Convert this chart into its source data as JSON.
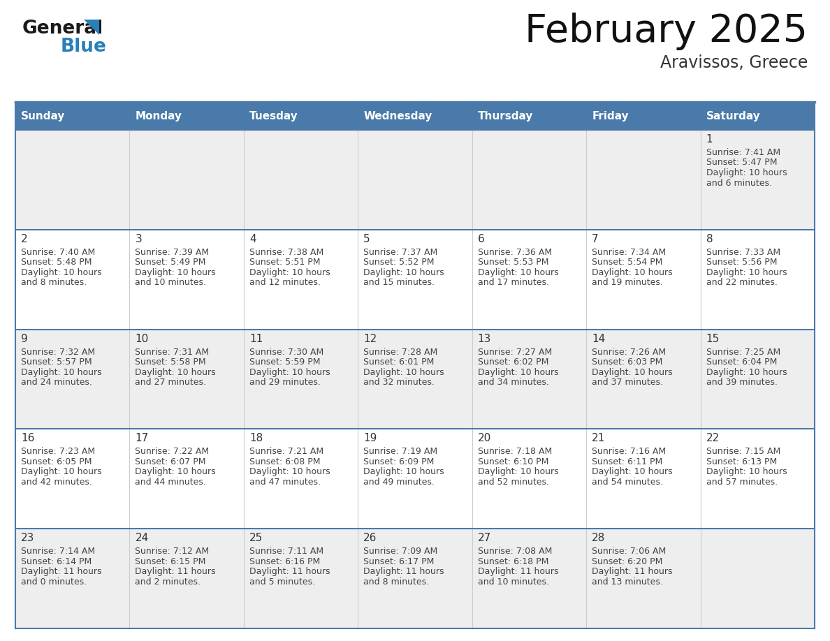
{
  "title": "February 2025",
  "subtitle": "Aravissos, Greece",
  "days_of_week": [
    "Sunday",
    "Monday",
    "Tuesday",
    "Wednesday",
    "Thursday",
    "Friday",
    "Saturday"
  ],
  "header_bg": "#4a7aaa",
  "header_text_color": "#ffffff",
  "row_bg_gray": "#eeeeee",
  "row_bg_white": "#ffffff",
  "border_color": "#4a7aaa",
  "day_number_color": "#333333",
  "cell_text_color": "#444444",
  "logo_black": "#1a1a1a",
  "logo_blue": "#2980b9",
  "calendar_data": [
    {
      "day": 1,
      "col": 6,
      "row": 0,
      "sunrise": "7:41 AM",
      "sunset": "5:47 PM",
      "daylight": "10 hours and 6 minutes."
    },
    {
      "day": 2,
      "col": 0,
      "row": 1,
      "sunrise": "7:40 AM",
      "sunset": "5:48 PM",
      "daylight": "10 hours and 8 minutes."
    },
    {
      "day": 3,
      "col": 1,
      "row": 1,
      "sunrise": "7:39 AM",
      "sunset": "5:49 PM",
      "daylight": "10 hours and 10 minutes."
    },
    {
      "day": 4,
      "col": 2,
      "row": 1,
      "sunrise": "7:38 AM",
      "sunset": "5:51 PM",
      "daylight": "10 hours and 12 minutes."
    },
    {
      "day": 5,
      "col": 3,
      "row": 1,
      "sunrise": "7:37 AM",
      "sunset": "5:52 PM",
      "daylight": "10 hours and 15 minutes."
    },
    {
      "day": 6,
      "col": 4,
      "row": 1,
      "sunrise": "7:36 AM",
      "sunset": "5:53 PM",
      "daylight": "10 hours and 17 minutes."
    },
    {
      "day": 7,
      "col": 5,
      "row": 1,
      "sunrise": "7:34 AM",
      "sunset": "5:54 PM",
      "daylight": "10 hours and 19 minutes."
    },
    {
      "day": 8,
      "col": 6,
      "row": 1,
      "sunrise": "7:33 AM",
      "sunset": "5:56 PM",
      "daylight": "10 hours and 22 minutes."
    },
    {
      "day": 9,
      "col": 0,
      "row": 2,
      "sunrise": "7:32 AM",
      "sunset": "5:57 PM",
      "daylight": "10 hours and 24 minutes."
    },
    {
      "day": 10,
      "col": 1,
      "row": 2,
      "sunrise": "7:31 AM",
      "sunset": "5:58 PM",
      "daylight": "10 hours and 27 minutes."
    },
    {
      "day": 11,
      "col": 2,
      "row": 2,
      "sunrise": "7:30 AM",
      "sunset": "5:59 PM",
      "daylight": "10 hours and 29 minutes."
    },
    {
      "day": 12,
      "col": 3,
      "row": 2,
      "sunrise": "7:28 AM",
      "sunset": "6:01 PM",
      "daylight": "10 hours and 32 minutes."
    },
    {
      "day": 13,
      "col": 4,
      "row": 2,
      "sunrise": "7:27 AM",
      "sunset": "6:02 PM",
      "daylight": "10 hours and 34 minutes."
    },
    {
      "day": 14,
      "col": 5,
      "row": 2,
      "sunrise": "7:26 AM",
      "sunset": "6:03 PM",
      "daylight": "10 hours and 37 minutes."
    },
    {
      "day": 15,
      "col": 6,
      "row": 2,
      "sunrise": "7:25 AM",
      "sunset": "6:04 PM",
      "daylight": "10 hours and 39 minutes."
    },
    {
      "day": 16,
      "col": 0,
      "row": 3,
      "sunrise": "7:23 AM",
      "sunset": "6:05 PM",
      "daylight": "10 hours and 42 minutes."
    },
    {
      "day": 17,
      "col": 1,
      "row": 3,
      "sunrise": "7:22 AM",
      "sunset": "6:07 PM",
      "daylight": "10 hours and 44 minutes."
    },
    {
      "day": 18,
      "col": 2,
      "row": 3,
      "sunrise": "7:21 AM",
      "sunset": "6:08 PM",
      "daylight": "10 hours and 47 minutes."
    },
    {
      "day": 19,
      "col": 3,
      "row": 3,
      "sunrise": "7:19 AM",
      "sunset": "6:09 PM",
      "daylight": "10 hours and 49 minutes."
    },
    {
      "day": 20,
      "col": 4,
      "row": 3,
      "sunrise": "7:18 AM",
      "sunset": "6:10 PM",
      "daylight": "10 hours and 52 minutes."
    },
    {
      "day": 21,
      "col": 5,
      "row": 3,
      "sunrise": "7:16 AM",
      "sunset": "6:11 PM",
      "daylight": "10 hours and 54 minutes."
    },
    {
      "day": 22,
      "col": 6,
      "row": 3,
      "sunrise": "7:15 AM",
      "sunset": "6:13 PM",
      "daylight": "10 hours and 57 minutes."
    },
    {
      "day": 23,
      "col": 0,
      "row": 4,
      "sunrise": "7:14 AM",
      "sunset": "6:14 PM",
      "daylight": "11 hours and 0 minutes."
    },
    {
      "day": 24,
      "col": 1,
      "row": 4,
      "sunrise": "7:12 AM",
      "sunset": "6:15 PM",
      "daylight": "11 hours and 2 minutes."
    },
    {
      "day": 25,
      "col": 2,
      "row": 4,
      "sunrise": "7:11 AM",
      "sunset": "6:16 PM",
      "daylight": "11 hours and 5 minutes."
    },
    {
      "day": 26,
      "col": 3,
      "row": 4,
      "sunrise": "7:09 AM",
      "sunset": "6:17 PM",
      "daylight": "11 hours and 8 minutes."
    },
    {
      "day": 27,
      "col": 4,
      "row": 4,
      "sunrise": "7:08 AM",
      "sunset": "6:18 PM",
      "daylight": "11 hours and 10 minutes."
    },
    {
      "day": 28,
      "col": 5,
      "row": 4,
      "sunrise": "7:06 AM",
      "sunset": "6:20 PM",
      "daylight": "11 hours and 13 minutes."
    }
  ],
  "num_rows": 5,
  "num_cols": 7,
  "fig_width": 11.88,
  "fig_height": 9.18,
  "dpi": 100
}
